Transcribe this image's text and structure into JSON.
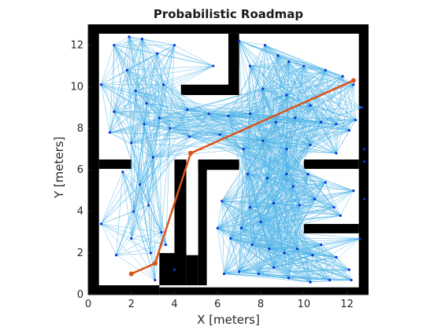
{
  "chart_data": {
    "type": "scatter",
    "title": "Probabilistic Roadmap",
    "xlabel": "X [meters]",
    "ylabel": "Y [meters]",
    "xlim": [
      0,
      13
    ],
    "ylim": [
      0,
      13
    ],
    "xticks": [
      0,
      2,
      4,
      6,
      8,
      10,
      12
    ],
    "yticks": [
      0,
      2,
      4,
      6,
      8,
      10,
      12
    ],
    "grid": false,
    "legend": "none",
    "colors": {
      "obstacle": "#000000",
      "edge": "#4db3e6",
      "node": "#0b2fd6",
      "path": "#d95319"
    },
    "obstacles": [
      {
        "x0": 0.0,
        "x1": 13.0,
        "y0": 12.55,
        "y1": 13.0
      },
      {
        "x0": 0.0,
        "x1": 0.5,
        "y0": 0.0,
        "y1": 13.0
      },
      {
        "x0": 12.55,
        "x1": 13.0,
        "y0": 0.0,
        "y1": 13.0
      },
      {
        "x0": 0.0,
        "x1": 3.3,
        "y0": 0.0,
        "y1": 0.45
      },
      {
        "x0": 3.3,
        "x1": 13.0,
        "y0": 0.0,
        "y1": 0.35
      },
      {
        "x0": 0.5,
        "x1": 2.0,
        "y0": 6.05,
        "y1": 6.5
      },
      {
        "x0": 3.3,
        "x1": 4.55,
        "y0": 0.45,
        "y1": 2.0
      },
      {
        "x0": 4.0,
        "x1": 4.55,
        "y0": 1.9,
        "y1": 6.5
      },
      {
        "x0": 4.55,
        "x1": 5.1,
        "y0": 0.45,
        "y1": 1.9
      },
      {
        "x0": 5.1,
        "x1": 5.5,
        "y0": 0.45,
        "y1": 6.5
      },
      {
        "x0": 5.1,
        "x1": 6.5,
        "y0": 6.0,
        "y1": 6.5
      },
      {
        "x0": 6.5,
        "x1": 7.0,
        "y0": 6.0,
        "y1": 6.5
      },
      {
        "x0": 4.3,
        "x1": 6.5,
        "y0": 9.6,
        "y1": 10.1
      },
      {
        "x0": 6.5,
        "x1": 7.0,
        "y0": 9.6,
        "y1": 12.55
      },
      {
        "x0": 10.0,
        "x1": 12.55,
        "y0": 6.05,
        "y1": 6.5
      },
      {
        "x0": 10.0,
        "x1": 12.55,
        "y0": 2.95,
        "y1": 3.4
      }
    ],
    "nodes": [
      {
        "x": 0.6,
        "y": 10.1
      },
      {
        "x": 1.2,
        "y": 12.0
      },
      {
        "x": 1.9,
        "y": 12.4
      },
      {
        "x": 2.5,
        "y": 12.3
      },
      {
        "x": 3.2,
        "y": 11.6
      },
      {
        "x": 4.0,
        "y": 12.0
      },
      {
        "x": 5.8,
        "y": 11.0
      },
      {
        "x": 1.8,
        "y": 10.8
      },
      {
        "x": 1.2,
        "y": 8.8
      },
      {
        "x": 1.0,
        "y": 7.8
      },
      {
        "x": 2.7,
        "y": 9.2
      },
      {
        "x": 3.5,
        "y": 10.1
      },
      {
        "x": 2.2,
        "y": 9.8
      },
      {
        "x": 3.3,
        "y": 8.5
      },
      {
        "x": 2.6,
        "y": 8.2
      },
      {
        "x": 3.8,
        "y": 8.0
      },
      {
        "x": 4.7,
        "y": 7.6
      },
      {
        "x": 2.0,
        "y": 7.3
      },
      {
        "x": 3.0,
        "y": 6.6
      },
      {
        "x": 1.6,
        "y": 5.9
      },
      {
        "x": 2.4,
        "y": 5.3
      },
      {
        "x": 2.8,
        "y": 4.3
      },
      {
        "x": 2.1,
        "y": 4.0
      },
      {
        "x": 0.6,
        "y": 3.4
      },
      {
        "x": 1.3,
        "y": 1.9
      },
      {
        "x": 2.0,
        "y": 2.7
      },
      {
        "x": 2.9,
        "y": 2.0
      },
      {
        "x": 3.1,
        "y": 0.7
      },
      {
        "x": 3.4,
        "y": 3.0
      },
      {
        "x": 3.6,
        "y": 2.4
      },
      {
        "x": 4.6,
        "y": 8.9
      },
      {
        "x": 5.6,
        "y": 8.7
      },
      {
        "x": 6.1,
        "y": 7.7
      },
      {
        "x": 6.5,
        "y": 8.6
      },
      {
        "x": 7.0,
        "y": 12.2
      },
      {
        "x": 7.5,
        "y": 11.0
      },
      {
        "x": 8.2,
        "y": 12.0
      },
      {
        "x": 8.8,
        "y": 11.5
      },
      {
        "x": 9.3,
        "y": 11.2
      },
      {
        "x": 10.0,
        "y": 11.0
      },
      {
        "x": 11.0,
        "y": 10.8
      },
      {
        "x": 11.8,
        "y": 10.5
      },
      {
        "x": 12.7,
        "y": 9.0
      },
      {
        "x": 12.4,
        "y": 8.4
      },
      {
        "x": 12.1,
        "y": 7.9
      },
      {
        "x": 12.8,
        "y": 7.0
      },
      {
        "x": 11.5,
        "y": 8.2
      },
      {
        "x": 10.3,
        "y": 9.1
      },
      {
        "x": 9.2,
        "y": 9.6
      },
      {
        "x": 8.1,
        "y": 9.9
      },
      {
        "x": 7.5,
        "y": 8.7
      },
      {
        "x": 8.7,
        "y": 8.3
      },
      {
        "x": 9.6,
        "y": 8.5
      },
      {
        "x": 10.8,
        "y": 8.3
      },
      {
        "x": 7.2,
        "y": 7.0
      },
      {
        "x": 8.1,
        "y": 7.4
      },
      {
        "x": 9.2,
        "y": 7.0
      },
      {
        "x": 10.3,
        "y": 7.2
      },
      {
        "x": 11.5,
        "y": 6.8
      },
      {
        "x": 12.8,
        "y": 6.4
      },
      {
        "x": 7.4,
        "y": 5.8
      },
      {
        "x": 8.3,
        "y": 5.6
      },
      {
        "x": 9.2,
        "y": 5.8
      },
      {
        "x": 9.5,
        "y": 5.2
      },
      {
        "x": 10.2,
        "y": 5.8
      },
      {
        "x": 11.0,
        "y": 5.4
      },
      {
        "x": 12.3,
        "y": 5.0
      },
      {
        "x": 12.8,
        "y": 4.6
      },
      {
        "x": 11.7,
        "y": 3.8
      },
      {
        "x": 11.4,
        "y": 4.2
      },
      {
        "x": 10.5,
        "y": 4.6
      },
      {
        "x": 9.8,
        "y": 4.3
      },
      {
        "x": 8.6,
        "y": 4.4
      },
      {
        "x": 7.5,
        "y": 4.2
      },
      {
        "x": 6.2,
        "y": 4.5
      },
      {
        "x": 6.0,
        "y": 3.2
      },
      {
        "x": 6.6,
        "y": 2.7
      },
      {
        "x": 7.1,
        "y": 3.2
      },
      {
        "x": 7.6,
        "y": 2.4
      },
      {
        "x": 8.4,
        "y": 2.2
      },
      {
        "x": 9.1,
        "y": 2.0
      },
      {
        "x": 9.7,
        "y": 2.2
      },
      {
        "x": 10.4,
        "y": 1.9
      },
      {
        "x": 10.8,
        "y": 2.4
      },
      {
        "x": 11.5,
        "y": 1.8
      },
      {
        "x": 12.1,
        "y": 1.2
      },
      {
        "x": 12.6,
        "y": 2.7
      },
      {
        "x": 12.2,
        "y": 0.7
      },
      {
        "x": 11.2,
        "y": 0.7
      },
      {
        "x": 10.3,
        "y": 0.6
      },
      {
        "x": 9.3,
        "y": 0.8
      },
      {
        "x": 8.6,
        "y": 1.3
      },
      {
        "x": 7.9,
        "y": 1.0
      },
      {
        "x": 7.0,
        "y": 1.1
      },
      {
        "x": 6.3,
        "y": 1.0
      },
      {
        "x": 8.0,
        "y": 3.5
      },
      {
        "x": 4.0,
        "y": 1.2
      },
      {
        "x": 12.3,
        "y": 10.1
      }
    ],
    "path": [
      {
        "x": 2.0,
        "y": 1.0
      },
      {
        "x": 3.1,
        "y": 1.5
      },
      {
        "x": 4.75,
        "y": 6.8
      },
      {
        "x": 12.3,
        "y": 10.3
      }
    ]
  }
}
